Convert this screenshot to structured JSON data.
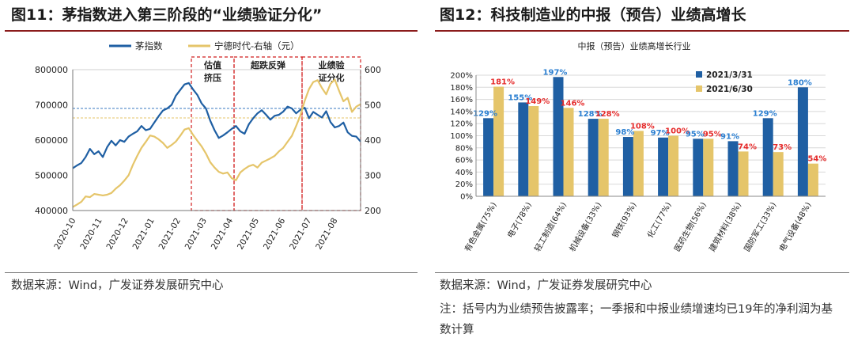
{
  "left": {
    "figure_title": "图11：茅指数进入第三阶段的“业绩验证分化”",
    "source": "数据来源：Wind，广发证券发展研究中心",
    "chart_data": {
      "type": "line",
      "legend": [
        "茅指数",
        "宁德时代-右轴（元）"
      ],
      "x_ticks": [
        "2020-10",
        "2020-11",
        "2020-12",
        "2021-01",
        "2021-02",
        "2021-03",
        "2021-04",
        "2021-05",
        "2021-06",
        "2021-07",
        "2021-08"
      ],
      "y_left_ticks": [
        "400000",
        "500000",
        "600000",
        "700000",
        "800000"
      ],
      "y_left_range": [
        400000,
        800000
      ],
      "y_right_ticks": [
        "200",
        "300",
        "400",
        "500",
        "600"
      ],
      "y_right_range": [
        200,
        600
      ],
      "reference_lines": {
        "mao_index": 690000,
        "catl": 463
      },
      "phases": [
        "估值\n挤压",
        "超跌反弹",
        "业绩验\n证分化"
      ],
      "series": [
        {
          "name": "茅指数",
          "color": "#1f5fa3",
          "values": [
            520000,
            528000,
            535000,
            552000,
            575000,
            560000,
            568000,
            552000,
            580000,
            598000,
            585000,
            600000,
            595000,
            610000,
            618000,
            625000,
            640000,
            628000,
            632000,
            650000,
            668000,
            684000,
            690000,
            700000,
            726000,
            742000,
            758000,
            762000,
            744000,
            728000,
            704000,
            690000,
            655000,
            628000,
            606000,
            613000,
            622000,
            632000,
            640000,
            625000,
            618000,
            645000,
            662000,
            676000,
            685000,
            672000,
            658000,
            669000,
            672000,
            681000,
            695000,
            690000,
            676000,
            686000,
            692000,
            662000,
            680000,
            672000,
            664000,
            682000,
            651000,
            636000,
            640000,
            650000,
            622000,
            612000,
            610000,
            596000
          ]
        },
        {
          "name": "宁德时代-右轴（元）",
          "color": "#e5c56a",
          "values": [
            210,
            217,
            225,
            240,
            238,
            247,
            245,
            243,
            245,
            250,
            262,
            272,
            285,
            300,
            330,
            355,
            378,
            395,
            413,
            410,
            402,
            392,
            378,
            386,
            396,
            412,
            430,
            434,
            415,
            398,
            382,
            362,
            337,
            322,
            310,
            305,
            308,
            292,
            286,
            308,
            318,
            326,
            330,
            322,
            336,
            342,
            348,
            355,
            368,
            378,
            395,
            412,
            440,
            470,
            512,
            545,
            565,
            570,
            548,
            530,
            560,
            572,
            540,
            510,
            520,
            480,
            495,
            502
          ]
        }
      ]
    }
  },
  "right": {
    "figure_title": "图12：科技制造业的中报（预告）业绩高增长",
    "source": "数据来源：Wind，广发证券发展研究中心",
    "note": "注：括号内为业绩预告披露率；一季报和中报业绩增速均已19年的净利润为基数计算",
    "chart_data": {
      "type": "bar",
      "title": "中报（预告）业绩高增长行业",
      "categories": [
        "有色金属(75%)",
        "电子(78%)",
        "轻工制造(64%)",
        "机械设备(33%)",
        "钢铁(93%)",
        "化工(77%)",
        "医药生物(56%)",
        "建筑材料(38%)",
        "国防军工(33%)",
        "电气设备(48%)"
      ],
      "y_ticks": [
        "0%",
        "20%",
        "40%",
        "60%",
        "80%",
        "100%",
        "120%",
        "140%",
        "160%",
        "180%",
        "200%"
      ],
      "ylim": [
        0,
        200
      ],
      "series": [
        {
          "name": "2021/3/31",
          "color": "#1f5fa3",
          "label_color": "#2b7fd1",
          "values": [
            129,
            155,
            197,
            128,
            98,
            97,
            95,
            91,
            129,
            180
          ],
          "labels": [
            "129%",
            "155%",
            "197%",
            "128%",
            "98%",
            "97%",
            "95%",
            "91%",
            "129%",
            "180%"
          ]
        },
        {
          "name": "2021/6/30",
          "color": "#e5c56a",
          "label_color": "#e52b2b",
          "values": [
            181,
            149,
            146,
            128,
            108,
            100,
            95,
            74,
            73,
            54
          ],
          "labels": [
            "181%",
            "149%",
            "146%",
            "128%",
            "108%",
            "100%",
            "95%",
            "74%",
            "73%",
            "54%"
          ]
        }
      ]
    }
  }
}
